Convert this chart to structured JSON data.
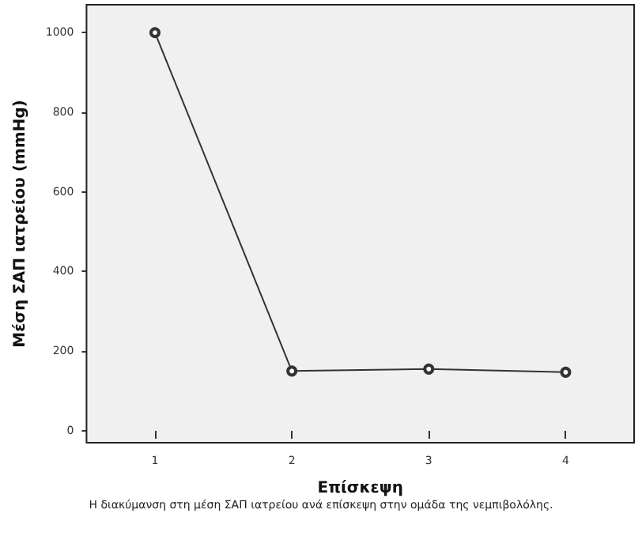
{
  "chart_data": {
    "type": "line",
    "xlabel": "Επίσκεψη",
    "ylabel": "Μέση ΣΑΠ ιατρείου (mmHg)",
    "categories": [
      "1",
      "2",
      "3",
      "4"
    ],
    "series": [
      {
        "color": "#333333",
        "values": [
          1000,
          150,
          155,
          147
        ]
      }
    ],
    "ylim": [
      -30,
      1070
    ],
    "yticks": [
      0,
      200,
      400,
      600,
      800,
      1000
    ],
    "grid": false,
    "marker": "circle",
    "line_style": "solid",
    "annotations": [
      "Η διακύμανση στη μέση ΣΑΠ ιατρείου ανά επίσκεψη στην ομάδα της νεμπιβολόλης."
    ]
  }
}
